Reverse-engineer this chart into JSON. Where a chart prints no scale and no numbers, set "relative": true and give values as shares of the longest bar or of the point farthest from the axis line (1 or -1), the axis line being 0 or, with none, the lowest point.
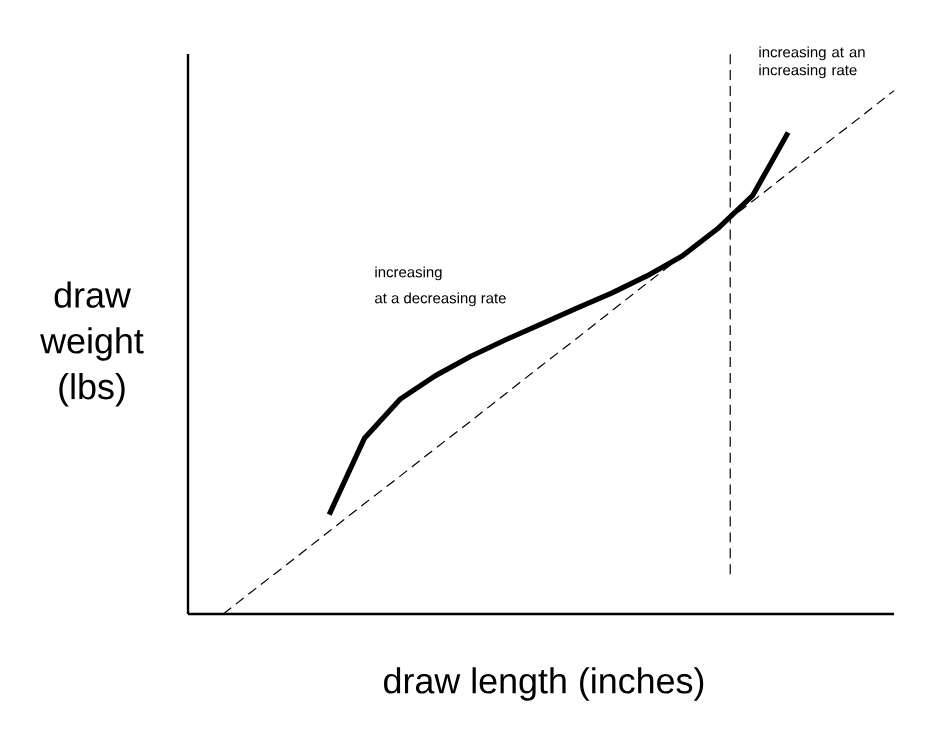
{
  "chart_data": {
    "type": "line",
    "relative": true,
    "xlabel": "draw length (inches)",
    "ylabel": "draw weight (lbs)",
    "tick_labels": false,
    "categories": [
      null,
      null,
      null,
      null,
      null,
      null,
      null,
      null,
      null,
      null,
      null,
      null,
      null,
      null,
      null,
      null,
      null,
      null,
      null,
      null,
      null
    ],
    "series": [
      {
        "color": "#000000",
        "line_style": "solid",
        "values": [
          null,
          null,
          null,
          null,
          0.19,
          0.336,
          0.41,
          0.455,
          0.492,
          0.524,
          0.554,
          0.584,
          0.613,
          0.646,
          0.684,
          0.736,
          0.8,
          0.92,
          null,
          null,
          null
        ]
      },
      {
        "color": "#000000",
        "line_style": "dashed",
        "values": [
          null,
          0,
          0.053,
          0.105,
          0.158,
          0.211,
          0.263,
          0.316,
          0.368,
          0.421,
          0.474,
          0.526,
          0.579,
          0.632,
          0.684,
          0.737,
          0.789,
          0.842,
          0.895,
          0.947,
          1
        ]
      }
    ],
    "annotations": [
      "increasing",
      "at a decreasing rate",
      "increasing at an increasing rate"
    ]
  }
}
